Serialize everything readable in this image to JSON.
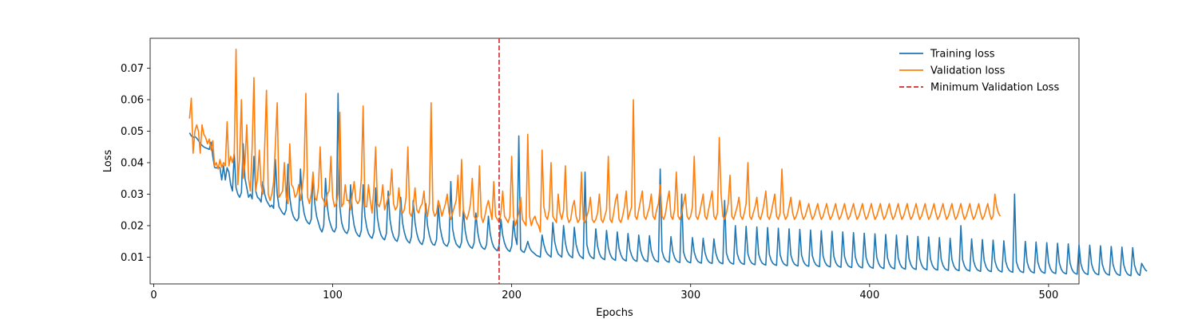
{
  "chart_data": {
    "type": "line",
    "title": "",
    "xlabel": "Epochs",
    "ylabel": "Loss",
    "xlim": [
      -2,
      517
    ],
    "ylim": [
      0.0015,
      0.0795
    ],
    "xticks": [
      0,
      100,
      200,
      300,
      400,
      500
    ],
    "xtick_labels": [
      "0",
      "100",
      "200",
      "300",
      "400",
      "500"
    ],
    "yticks": [
      0.01,
      0.02,
      0.03,
      0.04,
      0.05,
      0.06,
      0.07
    ],
    "ytick_labels": [
      "0.01",
      "0.02",
      "0.03",
      "0.04",
      "0.05",
      "0.06",
      "0.07"
    ],
    "grid": false,
    "legend_position": "top-right",
    "x_start": 20,
    "series": [
      {
        "name": "Training loss",
        "color": "#1f77b4",
        "values": [
          0.0495,
          0.0485,
          0.048,
          0.0483,
          0.0478,
          0.047,
          0.0462,
          0.0455,
          0.045,
          0.0447,
          0.0445,
          0.0442,
          0.0465,
          0.042,
          0.0385,
          0.0383,
          0.0386,
          0.0384,
          0.0345,
          0.039,
          0.0345,
          0.0384,
          0.037,
          0.033,
          0.031,
          0.043,
          0.032,
          0.03,
          0.029,
          0.0305,
          0.046,
          0.035,
          0.032,
          0.029,
          0.03,
          0.0285,
          0.042,
          0.031,
          0.029,
          0.0285,
          0.0275,
          0.034,
          0.03,
          0.028,
          0.027,
          0.026,
          0.0265,
          0.0255,
          0.041,
          0.03,
          0.026,
          0.025,
          0.024,
          0.0235,
          0.025,
          0.0395,
          0.029,
          0.025,
          0.023,
          0.022,
          0.0215,
          0.0225,
          0.038,
          0.028,
          0.024,
          0.022,
          0.021,
          0.0205,
          0.022,
          0.036,
          0.027,
          0.023,
          0.021,
          0.019,
          0.018,
          0.02,
          0.035,
          0.026,
          0.022,
          0.02,
          0.0185,
          0.018,
          0.0195,
          0.062,
          0.026,
          0.021,
          0.019,
          0.018,
          0.0175,
          0.019,
          0.033,
          0.024,
          0.02,
          0.018,
          0.017,
          0.0165,
          0.0185,
          0.033,
          0.023,
          0.0195,
          0.0175,
          0.0165,
          0.016,
          0.018,
          0.032,
          0.0225,
          0.019,
          0.017,
          0.016,
          0.0155,
          0.0175,
          0.031,
          0.022,
          0.0185,
          0.0165,
          0.0155,
          0.015,
          0.017,
          0.029,
          0.021,
          0.018,
          0.016,
          0.015,
          0.0145,
          0.0165,
          0.028,
          0.021,
          0.0175,
          0.0155,
          0.0145,
          0.014,
          0.016,
          0.027,
          0.02,
          0.017,
          0.015,
          0.014,
          0.0138,
          0.0155,
          0.0265,
          0.0195,
          0.0165,
          0.0145,
          0.0138,
          0.0135,
          0.015,
          0.034,
          0.019,
          0.016,
          0.0142,
          0.0135,
          0.013,
          0.0148,
          0.025,
          0.0185,
          0.0155,
          0.014,
          0.0132,
          0.0128,
          0.0145,
          0.024,
          0.018,
          0.015,
          0.0135,
          0.0128,
          0.0125,
          0.014,
          0.023,
          0.0175,
          0.0148,
          0.0132,
          0.0125,
          0.012,
          0.0138,
          0.022,
          0.017,
          0.0145,
          0.013,
          0.0122,
          0.0118,
          0.0135,
          0.0215,
          0.0165,
          0.014,
          0.0485,
          0.0125,
          0.0118,
          0.0115,
          0.013,
          0.015,
          0.013,
          0.012,
          0.0115,
          0.011,
          0.0105,
          0.0103,
          0.01,
          0.017,
          0.014,
          0.012,
          0.011,
          0.0105,
          0.01,
          0.021,
          0.015,
          0.0125,
          0.011,
          0.0105,
          0.01,
          0.02,
          0.0145,
          0.012,
          0.0108,
          0.0102,
          0.0098,
          0.0195,
          0.014,
          0.0118,
          0.0105,
          0.01,
          0.0095,
          0.037,
          0.014,
          0.0115,
          0.0103,
          0.0098,
          0.0095,
          0.019,
          0.0135,
          0.0112,
          0.01,
          0.0095,
          0.0092,
          0.0185,
          0.013,
          0.011,
          0.0098,
          0.0093,
          0.009,
          0.018,
          0.0128,
          0.0108,
          0.0096,
          0.0091,
          0.0088,
          0.0175,
          0.0125,
          0.0106,
          0.0094,
          0.0089,
          0.0087,
          0.017,
          0.0122,
          0.0104,
          0.0092,
          0.0088,
          0.0086,
          0.0168,
          0.012,
          0.0102,
          0.0091,
          0.0087,
          0.0085,
          0.038,
          0.012,
          0.01,
          0.009,
          0.0086,
          0.0084,
          0.0165,
          0.0118,
          0.0099,
          0.0089,
          0.0085,
          0.0083,
          0.03,
          0.0117,
          0.0098,
          0.0088,
          0.0084,
          0.0082,
          0.0162,
          0.0116,
          0.0097,
          0.0087,
          0.0083,
          0.0081,
          0.016,
          0.0115,
          0.0096,
          0.0086,
          0.0082,
          0.008,
          0.0158,
          0.0114,
          0.0095,
          0.0085,
          0.0081,
          0.0079,
          0.028,
          0.0113,
          0.0094,
          0.0084,
          0.008,
          0.0078,
          0.02,
          0.0112,
          0.0093,
          0.0083,
          0.0079,
          0.0077,
          0.0198,
          0.0111,
          0.0092,
          0.0082,
          0.0078,
          0.0076,
          0.0196,
          0.011,
          0.0091,
          0.0081,
          0.0077,
          0.0075,
          0.0194,
          0.0109,
          0.009,
          0.008,
          0.0076,
          0.0074,
          0.0192,
          0.0108,
          0.0089,
          0.0079,
          0.0075,
          0.0073,
          0.019,
          0.0107,
          0.0088,
          0.0078,
          0.0074,
          0.0072,
          0.0188,
          0.0106,
          0.0087,
          0.0077,
          0.0073,
          0.0071,
          0.0186,
          0.0105,
          0.0086,
          0.0076,
          0.0072,
          0.007,
          0.0184,
          0.0104,
          0.0085,
          0.0075,
          0.0071,
          0.0069,
          0.0182,
          0.0103,
          0.0084,
          0.0074,
          0.007,
          0.0068,
          0.018,
          0.0102,
          0.0083,
          0.0073,
          0.0069,
          0.0067,
          0.0178,
          0.0101,
          0.0082,
          0.0072,
          0.0068,
          0.0066,
          0.0176,
          0.01,
          0.0081,
          0.0071,
          0.0067,
          0.0065,
          0.0174,
          0.0099,
          0.008,
          0.007,
          0.0066,
          0.0064,
          0.0172,
          0.0098,
          0.0079,
          0.0069,
          0.0065,
          0.0063,
          0.017,
          0.0097,
          0.0078,
          0.0068,
          0.0064,
          0.0062,
          0.0168,
          0.0096,
          0.0077,
          0.0067,
          0.0063,
          0.0061,
          0.0166,
          0.0095,
          0.0076,
          0.0066,
          0.0062,
          0.006,
          0.0164,
          0.0094,
          0.0075,
          0.0065,
          0.0061,
          0.0059,
          0.0162,
          0.0093,
          0.0074,
          0.0064,
          0.006,
          0.0058,
          0.016,
          0.0092,
          0.0073,
          0.0063,
          0.0059,
          0.0057,
          0.02,
          0.0091,
          0.0072,
          0.0062,
          0.0058,
          0.0056,
          0.0158,
          0.009,
          0.0071,
          0.0061,
          0.0057,
          0.0055,
          0.0156,
          0.0089,
          0.007,
          0.006,
          0.0056,
          0.0054,
          0.0154,
          0.0088,
          0.0069,
          0.0059,
          0.0055,
          0.0053,
          0.0152,
          0.0087,
          0.0068,
          0.0058,
          0.0054,
          0.0052,
          0.03,
          0.0086,
          0.0067,
          0.0057,
          0.0053,
          0.0051,
          0.015,
          0.0085,
          0.0066,
          0.0056,
          0.0052,
          0.005,
          0.0148,
          0.0084,
          0.0065,
          0.0055,
          0.0051,
          0.0049,
          0.0146,
          0.0083,
          0.0064,
          0.0054,
          0.005,
          0.0048,
          0.0144,
          0.0082,
          0.0063,
          0.0053,
          0.0049,
          0.0047,
          0.0142,
          0.0081,
          0.0062,
          0.0052,
          0.0048,
          0.0046,
          0.014,
          0.008,
          0.0061,
          0.0051,
          0.0047,
          0.0045,
          0.0138,
          0.0079,
          0.006,
          0.005,
          0.0046,
          0.0044,
          0.0136,
          0.0078,
          0.0059,
          0.0049,
          0.0045,
          0.0043,
          0.0134,
          0.0077,
          0.0058,
          0.0048,
          0.0044,
          0.0042,
          0.0132,
          0.0076,
          0.0057,
          0.0047,
          0.0043,
          0.0041,
          0.013,
          0.0075,
          0.0056,
          0.0046,
          0.0042,
          0.008,
          0.007,
          0.006,
          0.0055
        ]
      },
      {
        "name": "Validation loss",
        "color": "#ff7f0e",
        "values": [
          0.054,
          0.0605,
          0.043,
          0.05,
          0.052,
          0.05,
          0.043,
          0.052,
          0.049,
          0.048,
          0.046,
          0.0475,
          0.044,
          0.047,
          0.039,
          0.04,
          0.038,
          0.041,
          0.0385,
          0.04,
          0.039,
          0.053,
          0.039,
          0.042,
          0.04,
          0.043,
          0.076,
          0.033,
          0.042,
          0.06,
          0.035,
          0.04,
          0.052,
          0.035,
          0.031,
          0.045,
          0.067,
          0.031,
          0.035,
          0.044,
          0.033,
          0.03,
          0.045,
          0.063,
          0.03,
          0.028,
          0.03,
          0.034,
          0.046,
          0.059,
          0.029,
          0.03,
          0.031,
          0.04,
          0.029,
          0.027,
          0.046,
          0.033,
          0.032,
          0.029,
          0.03,
          0.033,
          0.028,
          0.032,
          0.038,
          0.062,
          0.029,
          0.027,
          0.03,
          0.037,
          0.029,
          0.028,
          0.032,
          0.045,
          0.029,
          0.028,
          0.026,
          0.03,
          0.031,
          0.042,
          0.029,
          0.026,
          0.027,
          0.03,
          0.056,
          0.026,
          0.027,
          0.033,
          0.028,
          0.028,
          0.025,
          0.03,
          0.034,
          0.028,
          0.027,
          0.028,
          0.035,
          0.058,
          0.026,
          0.026,
          0.033,
          0.028,
          0.024,
          0.032,
          0.045,
          0.027,
          0.026,
          0.028,
          0.033,
          0.025,
          0.027,
          0.029,
          0.03,
          0.038,
          0.027,
          0.025,
          0.026,
          0.032,
          0.025,
          0.024,
          0.025,
          0.029,
          0.045,
          0.024,
          0.023,
          0.026,
          0.032,
          0.025,
          0.024,
          0.026,
          0.027,
          0.031,
          0.024,
          0.023,
          0.027,
          0.059,
          0.025,
          0.023,
          0.024,
          0.028,
          0.026,
          0.023,
          0.025,
          0.027,
          0.03,
          0.024,
          0.022,
          0.024,
          0.026,
          0.028,
          0.036,
          0.023,
          0.041,
          0.025,
          0.023,
          0.022,
          0.024,
          0.027,
          0.035,
          0.023,
          0.022,
          0.023,
          0.039,
          0.023,
          0.021,
          0.023,
          0.026,
          0.028,
          0.025,
          0.022,
          0.034,
          0.023,
          0.022,
          0.021,
          0.024,
          0.031,
          0.023,
          0.022,
          0.021,
          0.023,
          0.042,
          0.023,
          0.02,
          0.022,
          0.024,
          0.029,
          0.022,
          0.021,
          0.02,
          0.049,
          0.023,
          0.02,
          0.022,
          0.023,
          0.021,
          0.02,
          0.018,
          0.044,
          0.026,
          0.023,
          0.022,
          0.025,
          0.04,
          0.023,
          0.022,
          0.021,
          0.03,
          0.024,
          0.022,
          0.025,
          0.039,
          0.023,
          0.021,
          0.022,
          0.026,
          0.028,
          0.023,
          0.021,
          0.022,
          0.037,
          0.022,
          0.021,
          0.023,
          0.025,
          0.029,
          0.022,
          0.021,
          0.022,
          0.024,
          0.03,
          0.022,
          0.021,
          0.023,
          0.025,
          0.042,
          0.022,
          0.021,
          0.024,
          0.028,
          0.03,
          0.022,
          0.021,
          0.023,
          0.026,
          0.031,
          0.022,
          0.024,
          0.026,
          0.06,
          0.023,
          0.022,
          0.025,
          0.028,
          0.031,
          0.023,
          0.022,
          0.024,
          0.026,
          0.03,
          0.023,
          0.022,
          0.025,
          0.027,
          0.033,
          0.023,
          0.022,
          0.024,
          0.028,
          0.031,
          0.023,
          0.022,
          0.025,
          0.037,
          0.023,
          0.022,
          0.024,
          0.027,
          0.03,
          0.023,
          0.022,
          0.023,
          0.026,
          0.042,
          0.023,
          0.022,
          0.024,
          0.027,
          0.03,
          0.023,
          0.022,
          0.025,
          0.028,
          0.031,
          0.023,
          0.022,
          0.024,
          0.048,
          0.03,
          0.023,
          0.022,
          0.024,
          0.027,
          0.036,
          0.023,
          0.022,
          0.024,
          0.026,
          0.029,
          0.023,
          0.022,
          0.024,
          0.027,
          0.04,
          0.023,
          0.022,
          0.024,
          0.026,
          0.029,
          0.023,
          0.022,
          0.024,
          0.027,
          0.031,
          0.023,
          0.022,
          0.024,
          0.027,
          0.03,
          0.023,
          0.022,
          0.024,
          0.038,
          0.024,
          0.022,
          0.023,
          0.026,
          0.029,
          0.024,
          0.022,
          0.023,
          0.025,
          0.028,
          0.024,
          0.022,
          0.023,
          0.025,
          0.027,
          0.024,
          0.022,
          0.023,
          0.025,
          0.027,
          0.024,
          0.022,
          0.023,
          0.025,
          0.027,
          0.024,
          0.022,
          0.023,
          0.025,
          0.027,
          0.024,
          0.022,
          0.023,
          0.025,
          0.027,
          0.024,
          0.022,
          0.023,
          0.025,
          0.027,
          0.024,
          0.022,
          0.023,
          0.025,
          0.027,
          0.024,
          0.022,
          0.023,
          0.025,
          0.027,
          0.024,
          0.022,
          0.023,
          0.025,
          0.027,
          0.024,
          0.022,
          0.023,
          0.025,
          0.027,
          0.024,
          0.022,
          0.023,
          0.025,
          0.027,
          0.024,
          0.022,
          0.023,
          0.025,
          0.027,
          0.024,
          0.022,
          0.023,
          0.025,
          0.027,
          0.024,
          0.022,
          0.023,
          0.025,
          0.027,
          0.024,
          0.022,
          0.023,
          0.025,
          0.027,
          0.024,
          0.022,
          0.023,
          0.025,
          0.027,
          0.024,
          0.022,
          0.023,
          0.025,
          0.027,
          0.024,
          0.022,
          0.023,
          0.025,
          0.027,
          0.024,
          0.022,
          0.023,
          0.025,
          0.027,
          0.024,
          0.022,
          0.023,
          0.025,
          0.027,
          0.024,
          0.022,
          0.023,
          0.025,
          0.027,
          0.024,
          0.022,
          0.023,
          0.03,
          0.026,
          0.024,
          0.023
        ]
      }
    ],
    "reference_lines": [
      {
        "name": "Minimum Validation Loss",
        "orientation": "vertical",
        "x": 193,
        "color": "#d62728",
        "style": "dashed"
      }
    ],
    "legend": [
      {
        "label": "Training loss",
        "color": "#1f77b4",
        "style": "solid"
      },
      {
        "label": "Validation loss",
        "color": "#ff7f0e",
        "style": "solid"
      },
      {
        "label": "Minimum Validation Loss",
        "color": "#d62728",
        "style": "dashed"
      }
    ]
  }
}
